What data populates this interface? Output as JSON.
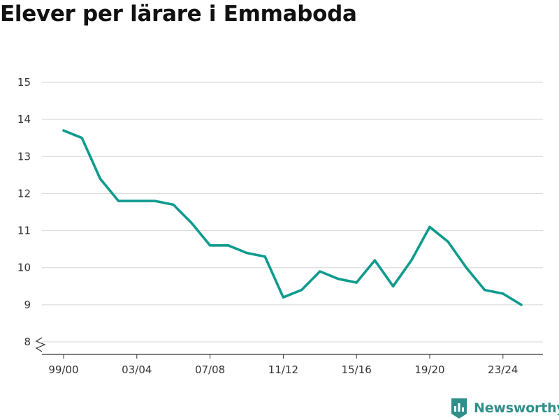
{
  "title": "Elever per lärare i Emmaboda",
  "colors": {
    "line": "#0f9b8e",
    "grid": "#d6d6d6",
    "axis": "#333333",
    "brand": "#2f8f8a"
  },
  "chart_data": {
    "type": "line",
    "title": "Elever per lärare i Emmaboda",
    "xlabel": "",
    "ylabel": "",
    "ylim": [
      8,
      15
    ],
    "y_ticks": [
      8,
      9,
      10,
      11,
      12,
      13,
      14,
      15
    ],
    "y_axis_break": true,
    "grid": true,
    "x_tick_labels": [
      "99/00",
      "03/04",
      "07/08",
      "11/12",
      "15/16",
      "19/20",
      "23/24"
    ],
    "x": [
      "99/00",
      "00/01",
      "01/02",
      "02/03",
      "03/04",
      "04/05",
      "05/06",
      "06/07",
      "07/08",
      "08/09",
      "09/10",
      "10/11",
      "11/12",
      "12/13",
      "13/14",
      "14/15",
      "15/16",
      "16/17",
      "17/18",
      "18/19",
      "19/20",
      "20/21",
      "21/22",
      "22/23",
      "23/24",
      "24/25"
    ],
    "series": [
      {
        "values": [
          13.7,
          13.5,
          12.4,
          11.8,
          11.8,
          11.8,
          11.7,
          11.2,
          10.6,
          10.6,
          10.4,
          10.3,
          9.2,
          9.4,
          9.9,
          9.7,
          9.6,
          10.2,
          9.5,
          10.2,
          11.1,
          10.7,
          10.0,
          9.4,
          9.3,
          9.0
        ]
      }
    ]
  },
  "logo": {
    "text": "Newsworthy",
    "icon": "bar-chart-badge-icon"
  }
}
